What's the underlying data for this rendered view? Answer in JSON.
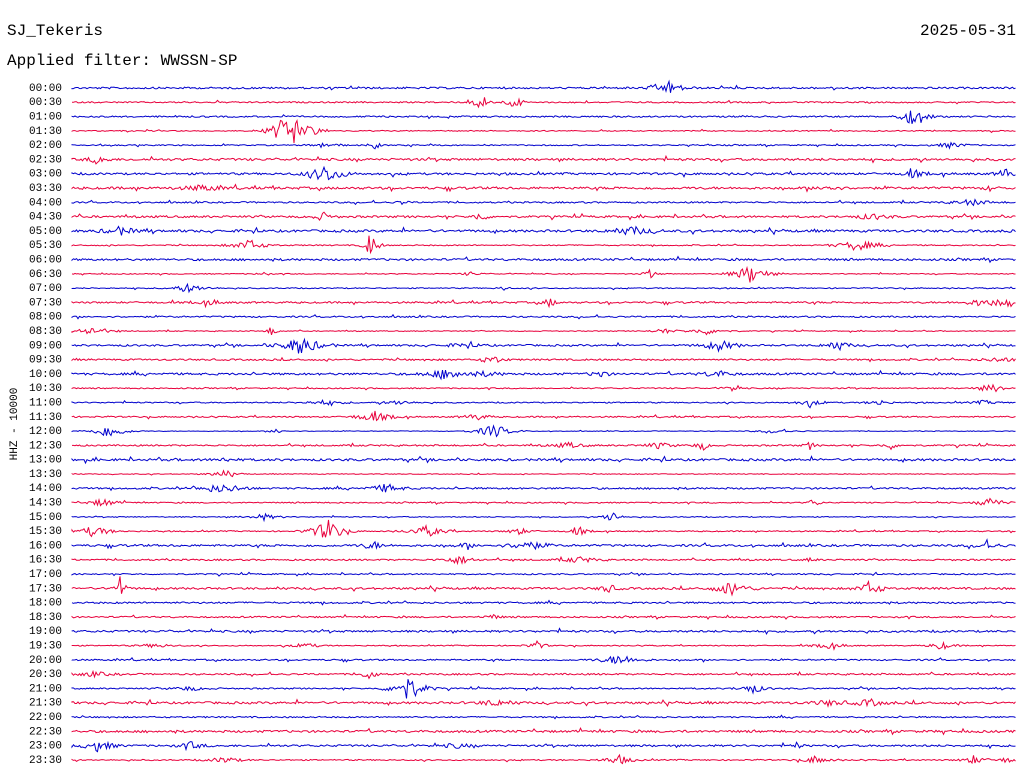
{
  "header": {
    "station": "SJ_Tekeris",
    "date": "2025-05-31",
    "filter": "Applied filter: WWSSN-SP"
  },
  "axis_label": "HHZ - 10000",
  "trace_colors": [
    "#0000cc",
    "#e8003c"
  ],
  "rows": [
    "00:00",
    "00:30",
    "01:00",
    "01:30",
    "02:00",
    "02:30",
    "03:00",
    "03:30",
    "04:00",
    "04:30",
    "05:00",
    "05:30",
    "06:00",
    "06:30",
    "07:00",
    "07:30",
    "08:00",
    "08:30",
    "09:00",
    "09:30",
    "10:00",
    "10:30",
    "11:00",
    "11:30",
    "12:00",
    "12:30",
    "13:00",
    "13:30",
    "14:00",
    "14:30",
    "15:00",
    "15:30",
    "16:00",
    "16:30",
    "17:00",
    "17:30",
    "18:00",
    "18:30",
    "19:00",
    "19:30",
    "20:00",
    "20:30",
    "21:00",
    "21:30",
    "22:00",
    "22:30",
    "23:00",
    "23:30"
  ]
}
